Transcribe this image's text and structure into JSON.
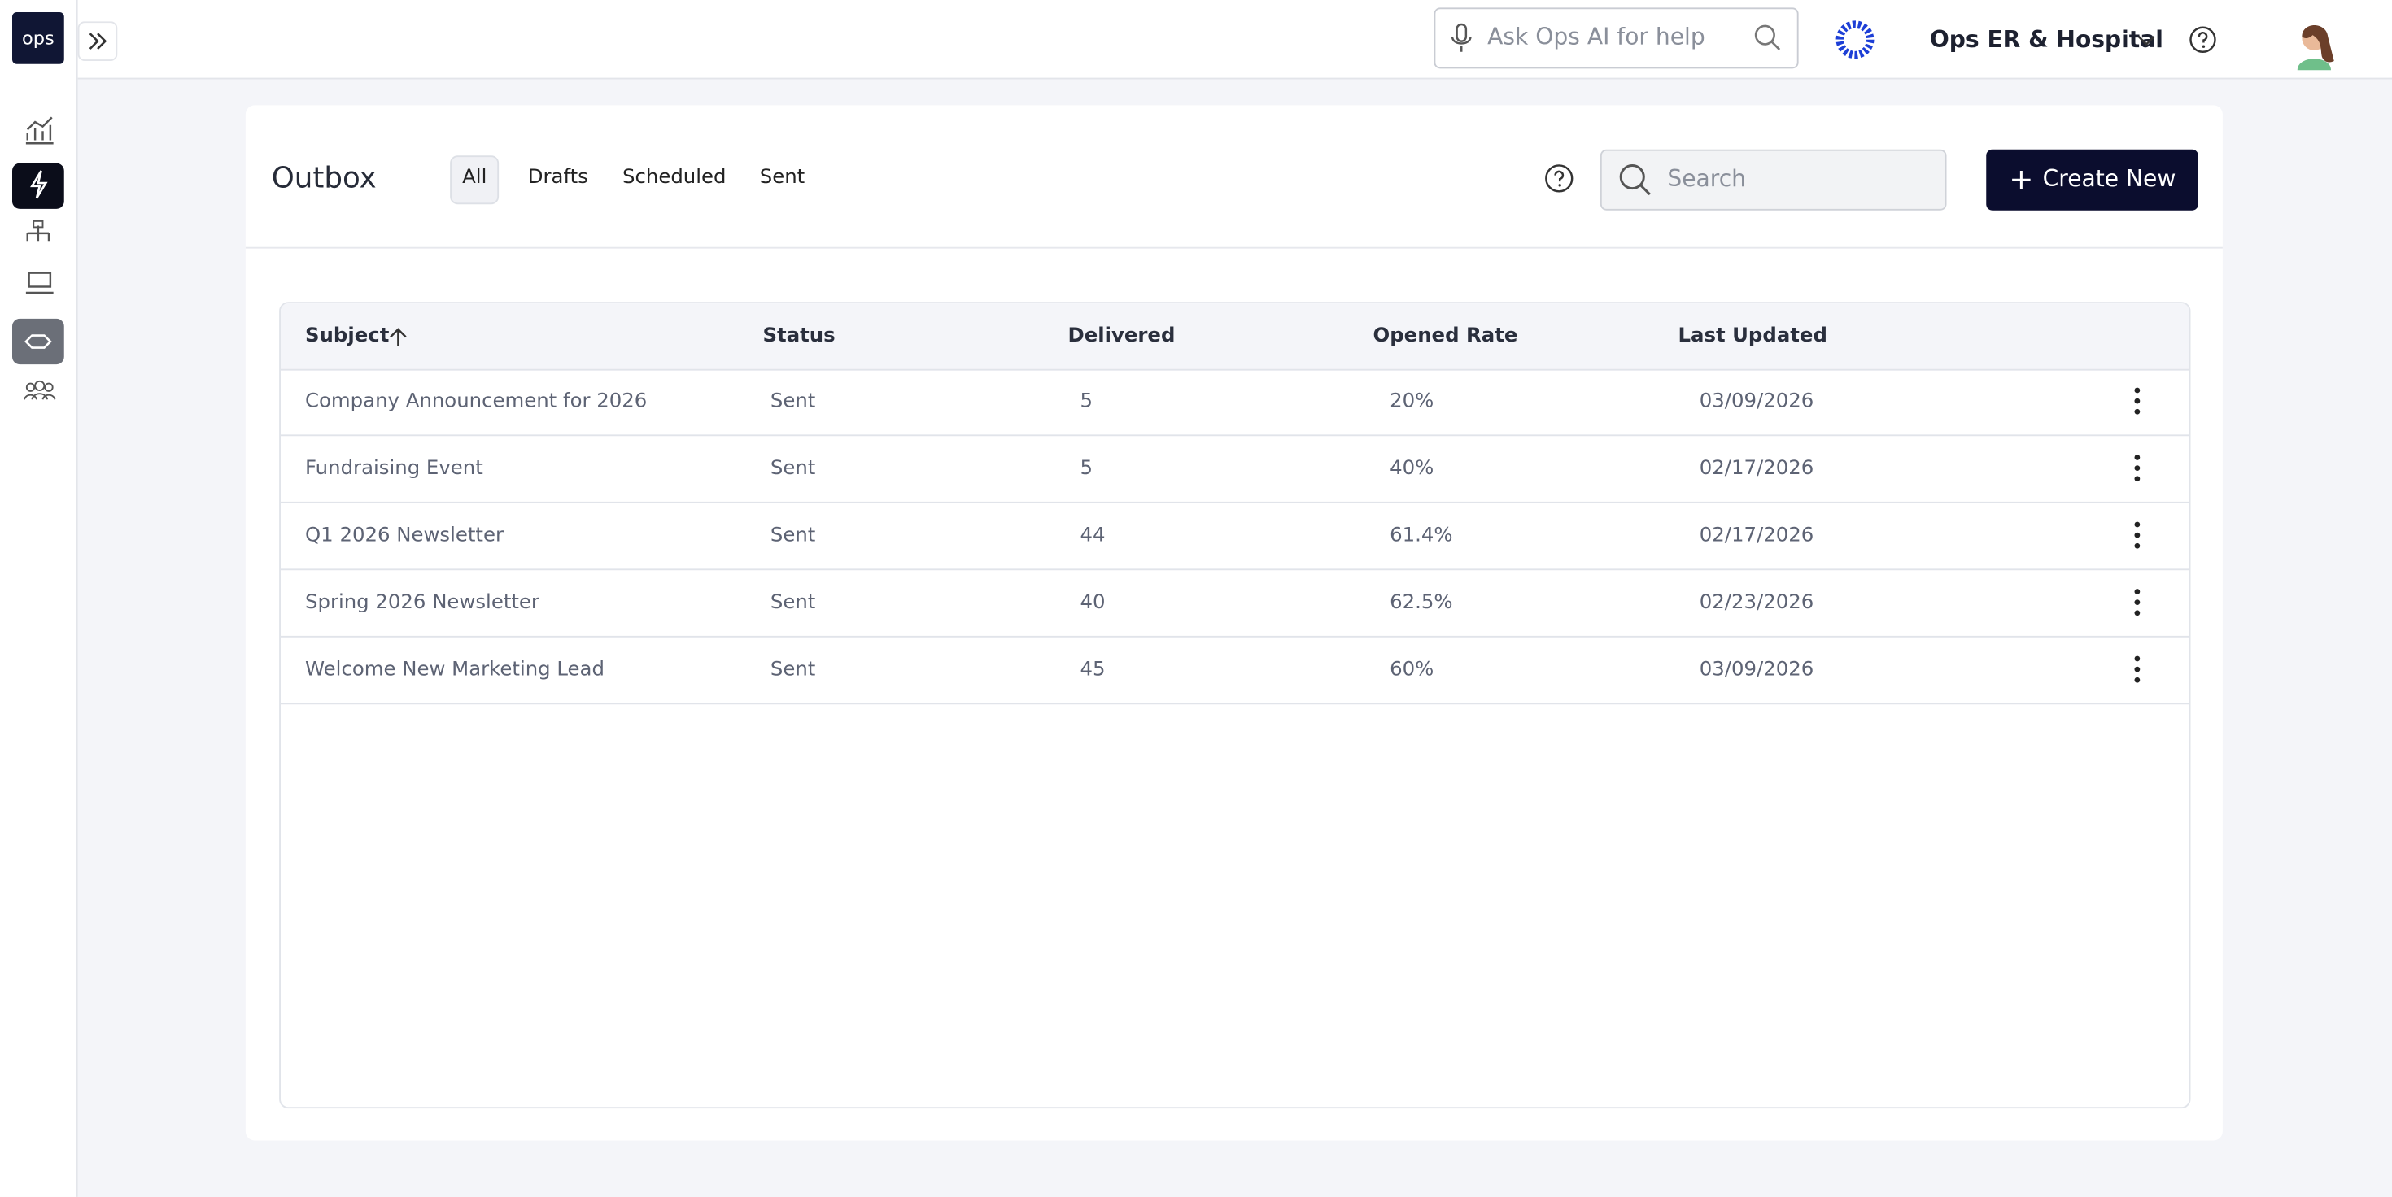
{
  "header": {
    "logo": "ops",
    "ai_search_placeholder": "Ask Ops AI for help",
    "organization": "Ops ER & Hospital"
  },
  "page": {
    "title": "Outbox",
    "tabs": [
      "All",
      "Drafts",
      "Scheduled",
      "Sent"
    ],
    "active_tab": "All",
    "search_placeholder": "Search",
    "create_button": "Create New"
  },
  "table": {
    "columns": [
      "Subject",
      "Status",
      "Delivered",
      "Opened Rate",
      "Last Updated"
    ],
    "rows": [
      [
        "Company Announcement for 2026",
        "Sent",
        "5",
        "20%",
        "03/09/2026"
      ],
      [
        "Fundraising Event",
        "Sent",
        "5",
        "40%",
        "02/17/2026"
      ],
      [
        "Q1 2026 Newsletter",
        "Sent",
        "44",
        "61.4%",
        "02/17/2026"
      ],
      [
        "Spring 2026 Newsletter",
        "Sent",
        "40",
        "62.5%",
        "02/23/2026"
      ],
      [
        "Welcome New Marketing Lead",
        "Sent",
        "45",
        "60%",
        "03/09/2026"
      ]
    ]
  }
}
